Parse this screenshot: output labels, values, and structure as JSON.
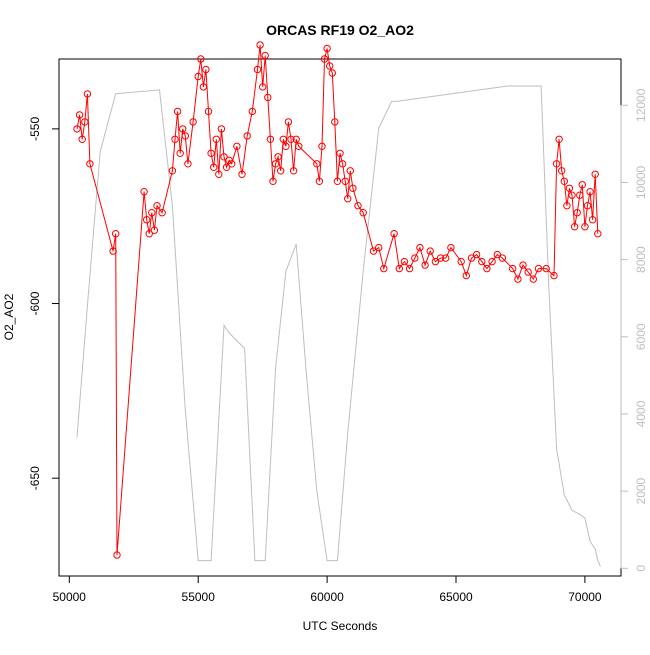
{
  "chart_data": {
    "type": "scatter",
    "title": "ORCAS RF19 O2_AO2",
    "xlabel": "UTC Seconds",
    "ylabel": "O2_AO2",
    "xlim": [
      49600,
      71400
    ],
    "ylim": [
      -678,
      -530
    ],
    "y2lim": [
      -200,
      13200
    ],
    "x_ticks": [
      50000,
      55000,
      60000,
      65000,
      70000
    ],
    "y_ticks": [
      -650,
      -600,
      -550
    ],
    "y2_ticks": [
      0,
      2000,
      4000,
      6000,
      8000,
      10000,
      12000
    ],
    "colors": {
      "o2_series": "#ff0000",
      "altitude_series": "#bebebe",
      "axis": "#000000"
    },
    "series": [
      {
        "role": "o2",
        "style": "points-and-lines",
        "x": [
          50300,
          50400,
          50500,
          50600,
          50700,
          50800,
          51700,
          51800,
          51850,
          52900,
          53000,
          53100,
          53200,
          53300,
          53400,
          53600,
          54000,
          54100,
          54200,
          54300,
          54400,
          54500,
          54600,
          54800,
          55000,
          55100,
          55200,
          55300,
          55400,
          55500,
          55600,
          55700,
          55800,
          55900,
          56000,
          56100,
          56200,
          56300,
          56500,
          56700,
          56900,
          57100,
          57300,
          57400,
          57500,
          57600,
          57700,
          57800,
          57900,
          58000,
          58100,
          58200,
          58300,
          58400,
          58500,
          58600,
          58700,
          58800,
          58900,
          59600,
          59700,
          59800,
          59900,
          60000,
          60100,
          60200,
          60300,
          60400,
          60500,
          60600,
          60700,
          60800,
          60900,
          61000,
          61200,
          61400,
          61800,
          62000,
          62200,
          62600,
          62800,
          63000,
          63200,
          63400,
          63600,
          63800,
          64000,
          64200,
          64400,
          64600,
          64800,
          65200,
          65400,
          65600,
          65800,
          66000,
          66200,
          66400,
          66600,
          66800,
          67200,
          67400,
          67600,
          67800,
          68000,
          68200,
          68500,
          68800,
          68900,
          69000,
          69100,
          69200,
          69300,
          69400,
          69500,
          69600,
          69700,
          69800,
          69900,
          70000,
          70100,
          70200,
          70300,
          70400,
          70500
        ],
        "y": [
          -550,
          -546,
          -553,
          -548,
          -540,
          -560,
          -585,
          -580,
          -672,
          -568,
          -576,
          -580,
          -574,
          -579,
          -572,
          -574,
          -562,
          -553,
          -545,
          -557,
          -550,
          -552,
          -560,
          -548,
          -535,
          -530,
          -538,
          -533,
          -545,
          -557,
          -561,
          -553,
          -563,
          -550,
          -558,
          -561,
          -559,
          -560,
          -555,
          -563,
          -552,
          -545,
          -533,
          -526,
          -538,
          -529,
          -541,
          -553,
          -565,
          -560,
          -558,
          -562,
          -553,
          -555,
          -548,
          -553,
          -562,
          -553,
          -555,
          -560,
          -565,
          -555,
          -530,
          -527,
          -532,
          -534,
          -548,
          -565,
          -557,
          -560,
          -565,
          -570,
          -562,
          -567,
          -572,
          -574,
          -585,
          -584,
          -590,
          -580,
          -590,
          -588,
          -590,
          -587,
          -584,
          -589,
          -585,
          -588,
          -587,
          -587,
          -584,
          -588,
          -592,
          -587,
          -586,
          -588,
          -590,
          -588,
          -586,
          -587,
          -590,
          -593,
          -589,
          -591,
          -593,
          -590,
          -590,
          -592,
          -560,
          -553,
          -562,
          -565,
          -572,
          -567,
          -569,
          -578,
          -574,
          -569,
          -566,
          -578,
          -572,
          -568,
          -576,
          -563,
          -580
        ]
      },
      {
        "role": "altitude",
        "style": "line",
        "x": [
          50300,
          50700,
          51200,
          51800,
          53500,
          54000,
          54500,
          55000,
          55500,
          56000,
          56200,
          56800,
          57200,
          57600,
          58000,
          58400,
          58800,
          59200,
          59600,
          60000,
          60400,
          60800,
          61400,
          62000,
          62500,
          62700,
          67000,
          68000,
          68300,
          68600,
          68900,
          69200,
          69500,
          69800,
          70000,
          70200,
          70400,
          70500,
          70600
        ],
        "y": [
          3400,
          6800,
          10800,
          12300,
          12400,
          9400,
          4100,
          200,
          200,
          6300,
          6100,
          5700,
          200,
          200,
          5200,
          7700,
          8400,
          5000,
          2000,
          200,
          200,
          3500,
          7700,
          11400,
          12100,
          12100,
          12500,
          12500,
          12500,
          7300,
          3100,
          1900,
          1500,
          1400,
          1300,
          700,
          500,
          200,
          50
        ]
      }
    ]
  }
}
